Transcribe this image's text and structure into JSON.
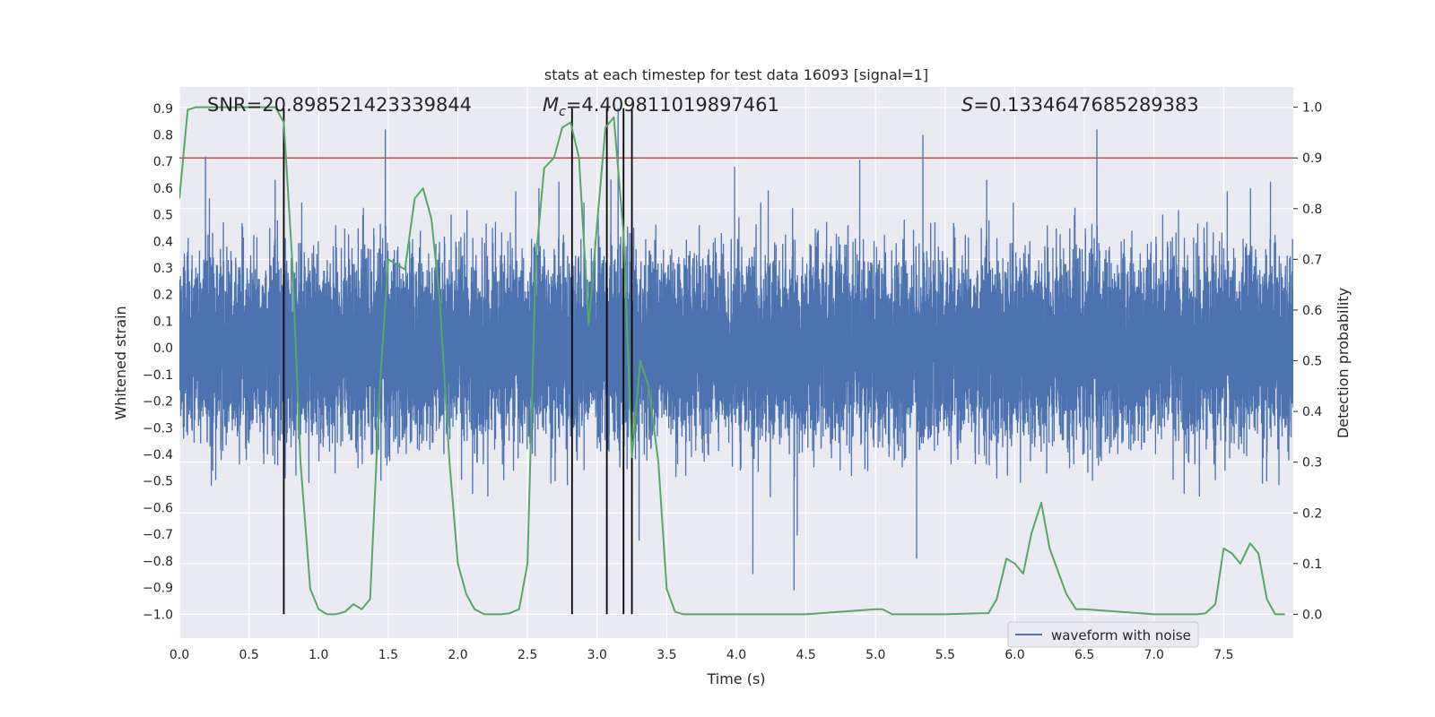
{
  "chart_data": {
    "type": "line",
    "title": "stats at each timestep for test data 16093 [signal=1]",
    "xlabel": "Time (s)",
    "ylabel": "Whitened strain",
    "y2label": "Detection probability",
    "xlim": [
      0.0,
      8.0
    ],
    "ylim": [
      -1.09,
      0.98
    ],
    "y2lim": [
      -0.047,
      1.04
    ],
    "xticks": [
      0.0,
      0.5,
      1.0,
      1.5,
      2.0,
      2.5,
      3.0,
      3.5,
      4.0,
      4.5,
      5.0,
      5.5,
      6.0,
      6.5,
      7.0,
      7.5
    ],
    "xtick_labels": [
      "0.0",
      "0.5",
      "1.0",
      "1.5",
      "2.0",
      "2.5",
      "3.0",
      "3.5",
      "4.0",
      "4.5",
      "5.0",
      "5.5",
      "6.0",
      "6.5",
      "7.0",
      "7.5"
    ],
    "yticks": [
      0.9,
      0.8,
      0.7,
      0.6,
      0.5,
      0.4,
      0.3,
      0.2,
      0.1,
      0.0,
      -0.1,
      -0.2,
      -0.3,
      -0.4,
      -0.5,
      -0.6,
      -0.7,
      -0.8,
      -0.9,
      -1.0
    ],
    "ytick_labels": [
      "0.9",
      "0.8",
      "0.7",
      "0.6",
      "0.5",
      "0.4",
      "0.3",
      "0.2",
      "0.1",
      "0.0",
      "−0.1",
      "−0.2",
      "−0.3",
      "−0.4",
      "−0.5",
      "−0.6",
      "−0.7",
      "−0.8",
      "−0.9",
      "−1.0"
    ],
    "y2ticks": [
      1.0,
      0.9,
      0.8,
      0.7,
      0.6,
      0.5,
      0.4,
      0.3,
      0.2,
      0.1,
      0.0
    ],
    "y2tick_labels": [
      "1.0",
      "0.9",
      "0.8",
      "0.7",
      "0.6",
      "0.5",
      "0.4",
      "0.3",
      "0.2",
      "0.1",
      "0.0"
    ],
    "annotations": {
      "snr": "SNR=20.898521423339844",
      "mc_symbol": "M",
      "mc_sub": "c",
      "mc_value": "=4.409811019897461",
      "s_symbol": "S",
      "s_value": "=0.1334647685289383"
    },
    "legend": {
      "label": "waveform with noise",
      "position": "lower-right"
    },
    "threshold": {
      "value": 0.9,
      "axis": "y2",
      "color": "#c44e52"
    },
    "vlines": [
      0.75,
      2.82,
      3.07,
      3.19,
      3.25
    ],
    "waveform": {
      "name": "waveform with noise",
      "color": "#4c72b0",
      "sample_rate": 2048,
      "noise_std": 0.165
    },
    "probability": {
      "name": "Detection probability",
      "color": "#55a868",
      "x": [
        0.0,
        0.06,
        0.12,
        0.18,
        0.25,
        0.31,
        0.37,
        0.44,
        0.5,
        0.56,
        0.62,
        0.69,
        0.75,
        0.81,
        0.87,
        0.94,
        1.0,
        1.06,
        1.12,
        1.19,
        1.25,
        1.31,
        1.37,
        1.44,
        1.5,
        1.56,
        1.62,
        1.69,
        1.75,
        1.81,
        1.87,
        1.94,
        2.0,
        2.06,
        2.12,
        2.19,
        2.25,
        2.31,
        2.37,
        2.44,
        2.5,
        2.56,
        2.62,
        2.69,
        2.75,
        2.81,
        2.87,
        2.94,
        3.0,
        3.06,
        3.12,
        3.19,
        3.25,
        3.31,
        3.37,
        3.44,
        3.5,
        3.56,
        3.62,
        3.69,
        3.75,
        3.81,
        3.87,
        3.94,
        4.0,
        4.5,
        5.0,
        5.05,
        5.12,
        5.5,
        5.75,
        5.81,
        5.87,
        5.94,
        6.0,
        6.06,
        6.12,
        6.19,
        6.25,
        6.37,
        6.44,
        6.5,
        7.0,
        7.25,
        7.31,
        7.37,
        7.44,
        7.5,
        7.56,
        7.62,
        7.69,
        7.75,
        7.81,
        7.87,
        7.94
      ],
      "values": [
        0.82,
        0.995,
        1.0,
        1.0,
        1.0,
        1.0,
        1.0,
        1.0,
        1.0,
        1.0,
        1.0,
        1.0,
        0.97,
        0.7,
        0.3,
        0.05,
        0.01,
        0.0,
        0.0,
        0.005,
        0.02,
        0.01,
        0.03,
        0.45,
        0.7,
        0.69,
        0.68,
        0.82,
        0.84,
        0.78,
        0.62,
        0.3,
        0.1,
        0.04,
        0.01,
        0.0,
        0.0,
        0.0,
        0.002,
        0.01,
        0.1,
        0.7,
        0.88,
        0.9,
        0.96,
        0.97,
        0.9,
        0.57,
        0.77,
        0.96,
        0.98,
        0.75,
        0.31,
        0.5,
        0.45,
        0.3,
        0.05,
        0.005,
        0.0,
        0.0,
        0.0,
        0.0,
        0.0,
        0.0,
        0.0,
        0.0,
        0.01,
        0.01,
        0.0,
        0.0,
        0.002,
        0.002,
        0.03,
        0.11,
        0.1,
        0.08,
        0.16,
        0.22,
        0.13,
        0.04,
        0.01,
        0.01,
        0.0,
        0.0,
        0.0,
        0.002,
        0.02,
        0.13,
        0.12,
        0.1,
        0.14,
        0.12,
        0.03,
        0.0,
        0.0
      ]
    }
  }
}
